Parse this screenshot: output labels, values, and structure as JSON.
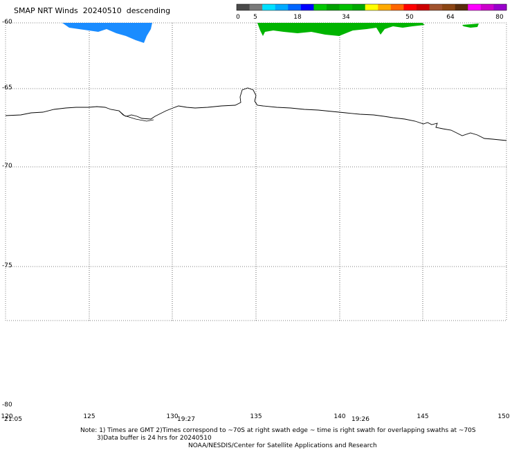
{
  "title": {
    "product": "SMAP NRT Winds",
    "date": "20240510",
    "pass": "descending"
  },
  "color_scale": {
    "labels": [
      "0",
      "5",
      "18",
      "34",
      "50",
      "64",
      "80"
    ],
    "colors": [
      "#4a4a4a",
      "#7a7a7a",
      "#00e0ff",
      "#00aaff",
      "#0066ff",
      "#0000ff",
      "#00c800",
      "#00a000",
      "#00c000",
      "#00a800",
      "#ffff00",
      "#ffaa00",
      "#ff6600",
      "#ff0000",
      "#cc0000",
      "#a0522d",
      "#8b4513",
      "#5a2d0c",
      "#ff00ff",
      "#cc00cc",
      "#9900cc"
    ]
  },
  "map": {
    "lat_labels": [
      "-60",
      "-65",
      "-70",
      "-75",
      "-80"
    ],
    "lon_labels": [
      "120",
      "125",
      "130",
      "135",
      "140",
      "145",
      "150"
    ],
    "time_labels": [
      "21:05",
      "19:27",
      "19:26"
    ],
    "swath_colors": {
      "blue": "#1a8cff",
      "green": "#00b400"
    }
  },
  "notes": {
    "line1": "Note: 1) Times are GMT 2)Times correspond to ~70S at right swath edge ~ time is right swath for overlapping swaths at ~70S",
    "line2": "3)Data buffer is 24 hrs for 20240510",
    "line3": "NOAA/NESDIS/Center for Satellite Applications and Research"
  }
}
